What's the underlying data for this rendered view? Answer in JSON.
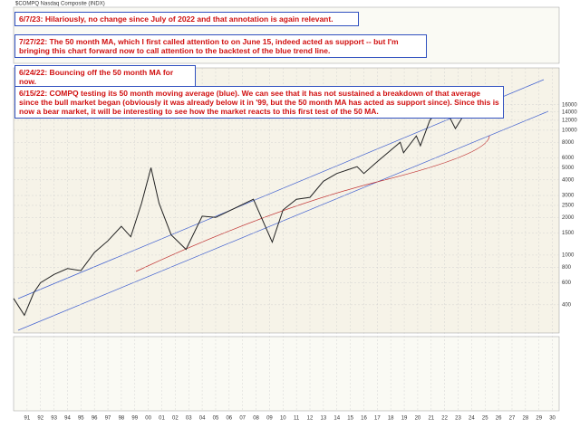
{
  "chart_data": {
    "type": "line",
    "title": "$COMPQ Nasdaq Composite (INDX)",
    "annotations": [
      "6/7/23:  Hilariously, no change since July of 2022 and that annotation is again relevant.",
      "7/27/22:  The 50 month MA, which I first called attention to on June 15, indeed acted as support -- but I'm bringing this chart forward now to call attention to the backtest of the blue trend line.",
      "6/24/22:  Bouncing off the 50 month MA for now.",
      "6/15/22:  COMPQ testing its 50 month moving average (blue).  We can see that it has not sustained a breakdown of that average since the bull market began (obviously it was already below it in '99, but the 50 month MA has acted as support since).  Since this is now a bear market, it will be interesting to see how the market reacts to this first test of the 50 MA."
    ],
    "x": [
      1990,
      1990.8,
      1991.5,
      1992,
      1993,
      1994,
      1995,
      1996,
      1997,
      1998,
      1998.7,
      1999.5,
      2000.2,
      2000.8,
      2001.7,
      2002.8,
      2004,
      2005,
      2007.8,
      2009.2,
      2010,
      2011,
      2012,
      2013,
      2014,
      2015.5,
      2016,
      2017,
      2018.7,
      2018.95,
      2019.9,
      2020.2,
      2020.9,
      2021.9,
      2022.8,
      2023.4
    ],
    "series": [
      {
        "name": "$COMPQ",
        "color": "#222222",
        "values": [
          450,
          330,
          500,
          600,
          700,
          780,
          750,
          1050,
          1300,
          1700,
          1400,
          2600,
          5000,
          2600,
          1450,
          1110,
          2050,
          2000,
          2800,
          1270,
          2300,
          2800,
          2900,
          3900,
          4500,
          5100,
          4500,
          5600,
          8000,
          6600,
          9000,
          7500,
          12000,
          16000,
          10300,
          13100
        ]
      }
    ],
    "xlim": [
      1990,
      2030.5
    ],
    "xticks": [
      {
        "value": 1991,
        "label": "91"
      },
      {
        "value": 1992,
        "label": "92"
      },
      {
        "value": 1993,
        "label": "93"
      },
      {
        "value": 1994,
        "label": "94"
      },
      {
        "value": 1995,
        "label": "95"
      },
      {
        "value": 1996,
        "label": "96"
      },
      {
        "value": 1997,
        "label": "97"
      },
      {
        "value": 1998,
        "label": "98"
      },
      {
        "value": 1999,
        "label": "99"
      },
      {
        "value": 2000,
        "label": "00"
      },
      {
        "value": 2001,
        "label": "01"
      },
      {
        "value": 2002,
        "label": "02"
      },
      {
        "value": 2003,
        "label": "03"
      },
      {
        "value": 2004,
        "label": "04"
      },
      {
        "value": 2005,
        "label": "05"
      },
      {
        "value": 2006,
        "label": "06"
      },
      {
        "value": 2007,
        "label": "07"
      },
      {
        "value": 2008,
        "label": "08"
      },
      {
        "value": 2009,
        "label": "09"
      },
      {
        "value": 2010,
        "label": "10"
      },
      {
        "value": 2011,
        "label": "11"
      },
      {
        "value": 2012,
        "label": "12"
      },
      {
        "value": 2013,
        "label": "13"
      },
      {
        "value": 2014,
        "label": "14"
      },
      {
        "value": 2015,
        "label": "15"
      },
      {
        "value": 2016,
        "label": "16"
      },
      {
        "value": 2017,
        "label": "17"
      },
      {
        "value": 2018,
        "label": "18"
      },
      {
        "value": 2019,
        "label": "19"
      },
      {
        "value": 2020,
        "label": "20"
      },
      {
        "value": 2021,
        "label": "21"
      },
      {
        "value": 2022,
        "label": "22"
      },
      {
        "value": 2023,
        "label": "23"
      },
      {
        "value": 2024,
        "label": "24"
      },
      {
        "value": 2025,
        "label": "25"
      },
      {
        "value": 2026,
        "label": "26"
      },
      {
        "value": 2027,
        "label": "27"
      },
      {
        "value": 2028,
        "label": "28"
      },
      {
        "value": 2029,
        "label": "29"
      },
      {
        "value": 2030,
        "label": "30"
      }
    ],
    "ylim": [
      250,
      30000
    ],
    "log_scale": true,
    "yticks": [
      400,
      600,
      800,
      1000,
      1500,
      2000,
      2500,
      3000,
      4000,
      5000,
      6000,
      8000,
      10000,
      12000,
      14000,
      16000
    ],
    "grid": true
  }
}
